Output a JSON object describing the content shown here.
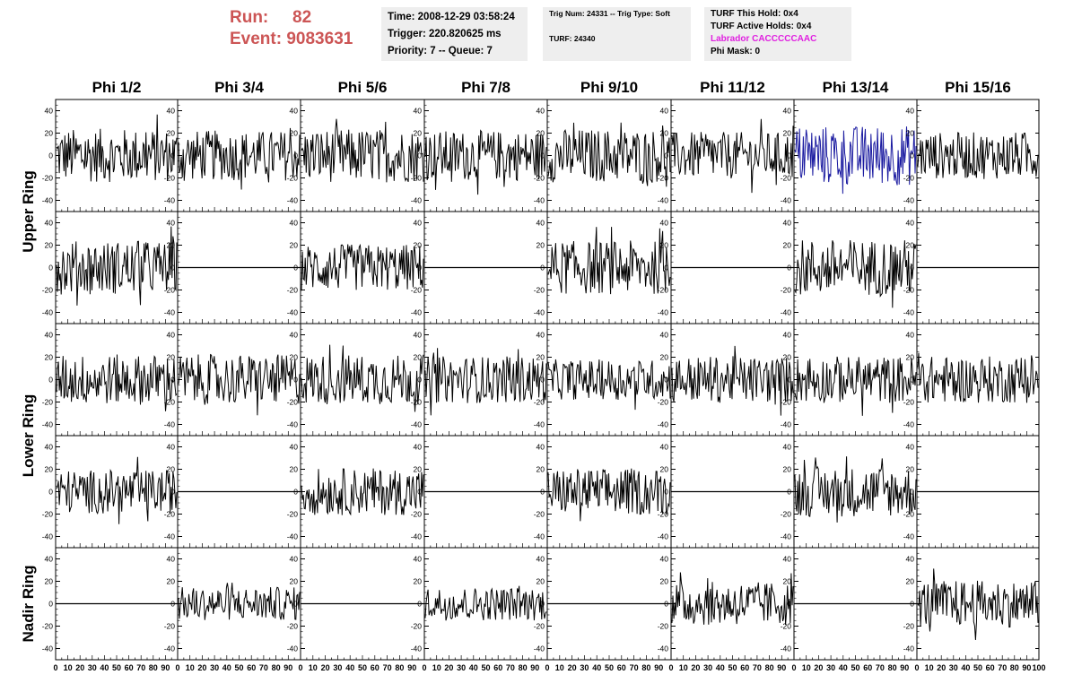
{
  "header": {
    "run_label": "Run:",
    "run_value": "82",
    "event_label": "Event:",
    "event_value": "9083631",
    "time": "Time: 2008-12-29 03:58:24",
    "trigger": "Trigger: 220.820625 ms",
    "priority": "Priority: 7 -- Queue: 7",
    "trig_num": "Trig Num: 24331 -- Trig Type: Soft",
    "turf": "TURF: 24340",
    "turf_hold": "TURF This Hold: 0x4",
    "turf_active": "TURF Active Holds: 0x4",
    "labrador": "Labrador CACCCCCAAC",
    "phi_mask": "Phi Mask: 0"
  },
  "columns": [
    "Phi 1/2",
    "Phi 3/4",
    "Phi 5/6",
    "Phi 7/8",
    "Phi 9/10",
    "Phi 11/12",
    "Phi 13/14",
    "Phi 15/16"
  ],
  "ring_labels": [
    {
      "label": "Upper Ring",
      "rows": [
        0,
        1
      ]
    },
    {
      "label": "Lower Ring",
      "rows": [
        2,
        3
      ]
    },
    {
      "label": "Nadir Ring",
      "rows": [
        4
      ]
    }
  ],
  "colors": {
    "trace": "#000000",
    "highlight": "#1a1aa0",
    "run_text": "#cc5555",
    "magenta": "#e020e0",
    "box_bg": "#eeeeee"
  },
  "chart_data": {
    "type": "line",
    "grid_rows": 5,
    "grid_cols": 8,
    "ylim": [
      -50,
      50
    ],
    "xlim": [
      0,
      100
    ],
    "yticks": [
      -40,
      -20,
      0,
      20,
      40
    ],
    "xticks": [
      0,
      10,
      20,
      30,
      40,
      50,
      60,
      70,
      80,
      90,
      100
    ],
    "x_tick_labels": [
      "0",
      "10",
      "20",
      "30",
      "40",
      "50",
      "60",
      "70",
      "80",
      "90",
      "100"
    ],
    "trace_type": [
      [
        "noise",
        "noise",
        "noise",
        "noise",
        "noise",
        "noise",
        "highlight",
        "noise"
      ],
      [
        "noise",
        "flat",
        "noise",
        "flat",
        "noise",
        "flat",
        "noise",
        "flat"
      ],
      [
        "noise",
        "noise",
        "noise",
        "noise",
        "noise",
        "noise",
        "noise",
        "noise"
      ],
      [
        "noise",
        "flat",
        "noise",
        "flat",
        "noise",
        "flat",
        "noise",
        "flat"
      ],
      [
        "flat",
        "noise",
        "flat",
        "noise",
        "flat",
        "noise",
        "flat",
        "noise"
      ]
    ],
    "amplitude": [
      [
        16,
        15,
        16,
        15,
        16,
        14,
        18,
        14
      ],
      [
        16,
        0,
        14,
        0,
        16,
        0,
        17,
        0
      ],
      [
        15,
        15,
        15,
        14,
        12,
        14,
        14,
        14
      ],
      [
        13,
        0,
        14,
        0,
        14,
        0,
        15,
        0
      ],
      [
        0,
        10,
        0,
        10,
        0,
        13,
        0,
        14
      ]
    ]
  }
}
